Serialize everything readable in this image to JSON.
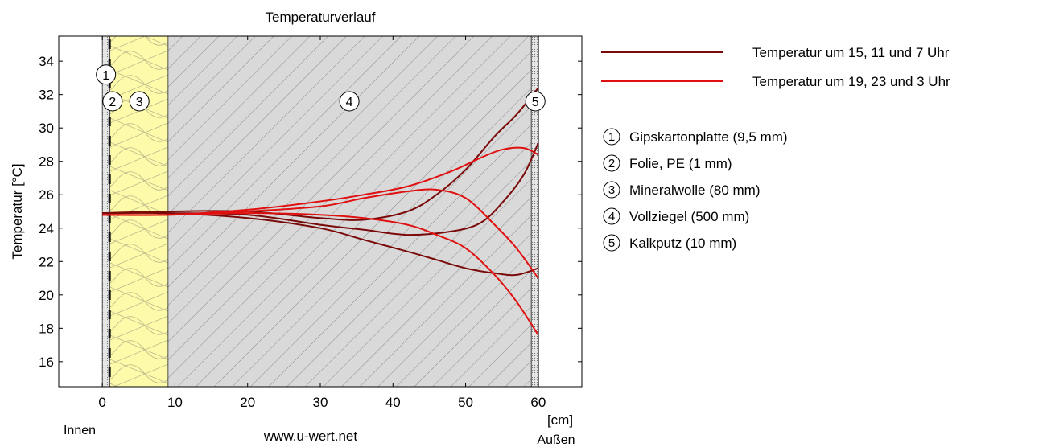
{
  "chart_data": {
    "type": "line",
    "title": "Temperaturverlauf",
    "xlabel": "[cm]",
    "ylabel": "Temperatur [°C]",
    "xlim": [
      -6,
      66
    ],
    "ylim": [
      14.5,
      35.5
    ],
    "xticks": [
      0,
      10,
      20,
      30,
      40,
      50,
      60
    ],
    "yticks": [
      16,
      18,
      20,
      22,
      24,
      26,
      28,
      30,
      32,
      34
    ],
    "grid": false,
    "legend_position": "right",
    "side_labels": {
      "inside": "Innen",
      "outside": "Außen"
    },
    "footer": "www.u-wert.net",
    "colors": {
      "dark": "#7a0a0a",
      "red": "#e01010",
      "insulation": "#fdfbaa",
      "brick": "#d9d9d9"
    },
    "layers": [
      {
        "num": "1",
        "name": "Gipskartonplatte (9,5 mm)",
        "x0": 0,
        "x1": 0.95,
        "fill": "#e6e6e6"
      },
      {
        "num": "2",
        "name": "Folie, PE (1 mm)",
        "x0": 0.95,
        "x1": 1.05,
        "fill": "#222222"
      },
      {
        "num": "3",
        "name": "Mineralwolle (80 mm)",
        "x0": 1.05,
        "x1": 9.05,
        "fill": "#fdfbaa"
      },
      {
        "num": "4",
        "name": "Vollziegel (500 mm)",
        "x0": 9.05,
        "x1": 59.05,
        "fill": "#d9d9d9"
      },
      {
        "num": "5",
        "name": "Kalkputz (10 mm)",
        "x0": 59.05,
        "x1": 60.05,
        "fill": "#e6e6e6"
      }
    ],
    "layer_markers": [
      {
        "num": "1",
        "x": 0.5,
        "y": 33.2
      },
      {
        "num": "2",
        "x": 1.4,
        "y": 31.6
      },
      {
        "num": "3",
        "x": 5.1,
        "y": 31.6
      },
      {
        "num": "4",
        "x": 34,
        "y": 31.6
      },
      {
        "num": "5",
        "x": 59.6,
        "y": 31.6
      }
    ],
    "series": [
      {
        "name": "Temperatur um 15, 11 und 7 Uhr",
        "color": "#7a0a0a",
        "lines": [
          {
            "x": [
              0,
              9,
              20,
              30,
              36,
              42,
              46,
              50,
              54,
              57,
              60
            ],
            "y": [
              24.9,
              25.0,
              25.0,
              24.6,
              24.5,
              25.0,
              26.0,
              27.5,
              29.5,
              30.8,
              32.4
            ]
          },
          {
            "x": [
              0,
              9,
              20,
              30,
              36,
              42,
              48,
              52,
              55,
              58,
              60
            ],
            "y": [
              24.9,
              24.9,
              24.8,
              24.2,
              23.9,
              23.6,
              23.8,
              24.3,
              25.5,
              27.2,
              29.1
            ]
          },
          {
            "x": [
              0,
              9,
              20,
              30,
              36,
              42,
              46,
              50,
              54,
              57,
              60
            ],
            "y": [
              24.9,
              24.9,
              24.6,
              24.0,
              23.3,
              22.6,
              22.1,
              21.6,
              21.3,
              21.2,
              21.6
            ]
          }
        ]
      },
      {
        "name": "Temperatur um 19, 23 und 3 Uhr",
        "color": "#e01010",
        "lines": [
          {
            "x": [
              0,
              9,
              20,
              30,
              36,
              42,
              48,
              52,
              55,
              58,
              60
            ],
            "y": [
              24.8,
              24.8,
              25.1,
              25.6,
              26.0,
              26.5,
              27.4,
              28.2,
              28.7,
              28.8,
              28.4
            ]
          },
          {
            "x": [
              0,
              9,
              20,
              30,
              36,
              42,
              46,
              50,
              54,
              57,
              60
            ],
            "y": [
              24.8,
              24.8,
              25.0,
              25.3,
              25.8,
              26.2,
              26.3,
              25.8,
              24.2,
              22.8,
              21.0
            ]
          },
          {
            "x": [
              0,
              9,
              20,
              30,
              36,
              42,
              46,
              50,
              54,
              57,
              60
            ],
            "y": [
              24.8,
              24.8,
              24.9,
              24.8,
              24.6,
              24.2,
              23.6,
              22.8,
              21.2,
              19.6,
              17.6
            ]
          }
        ]
      }
    ]
  }
}
